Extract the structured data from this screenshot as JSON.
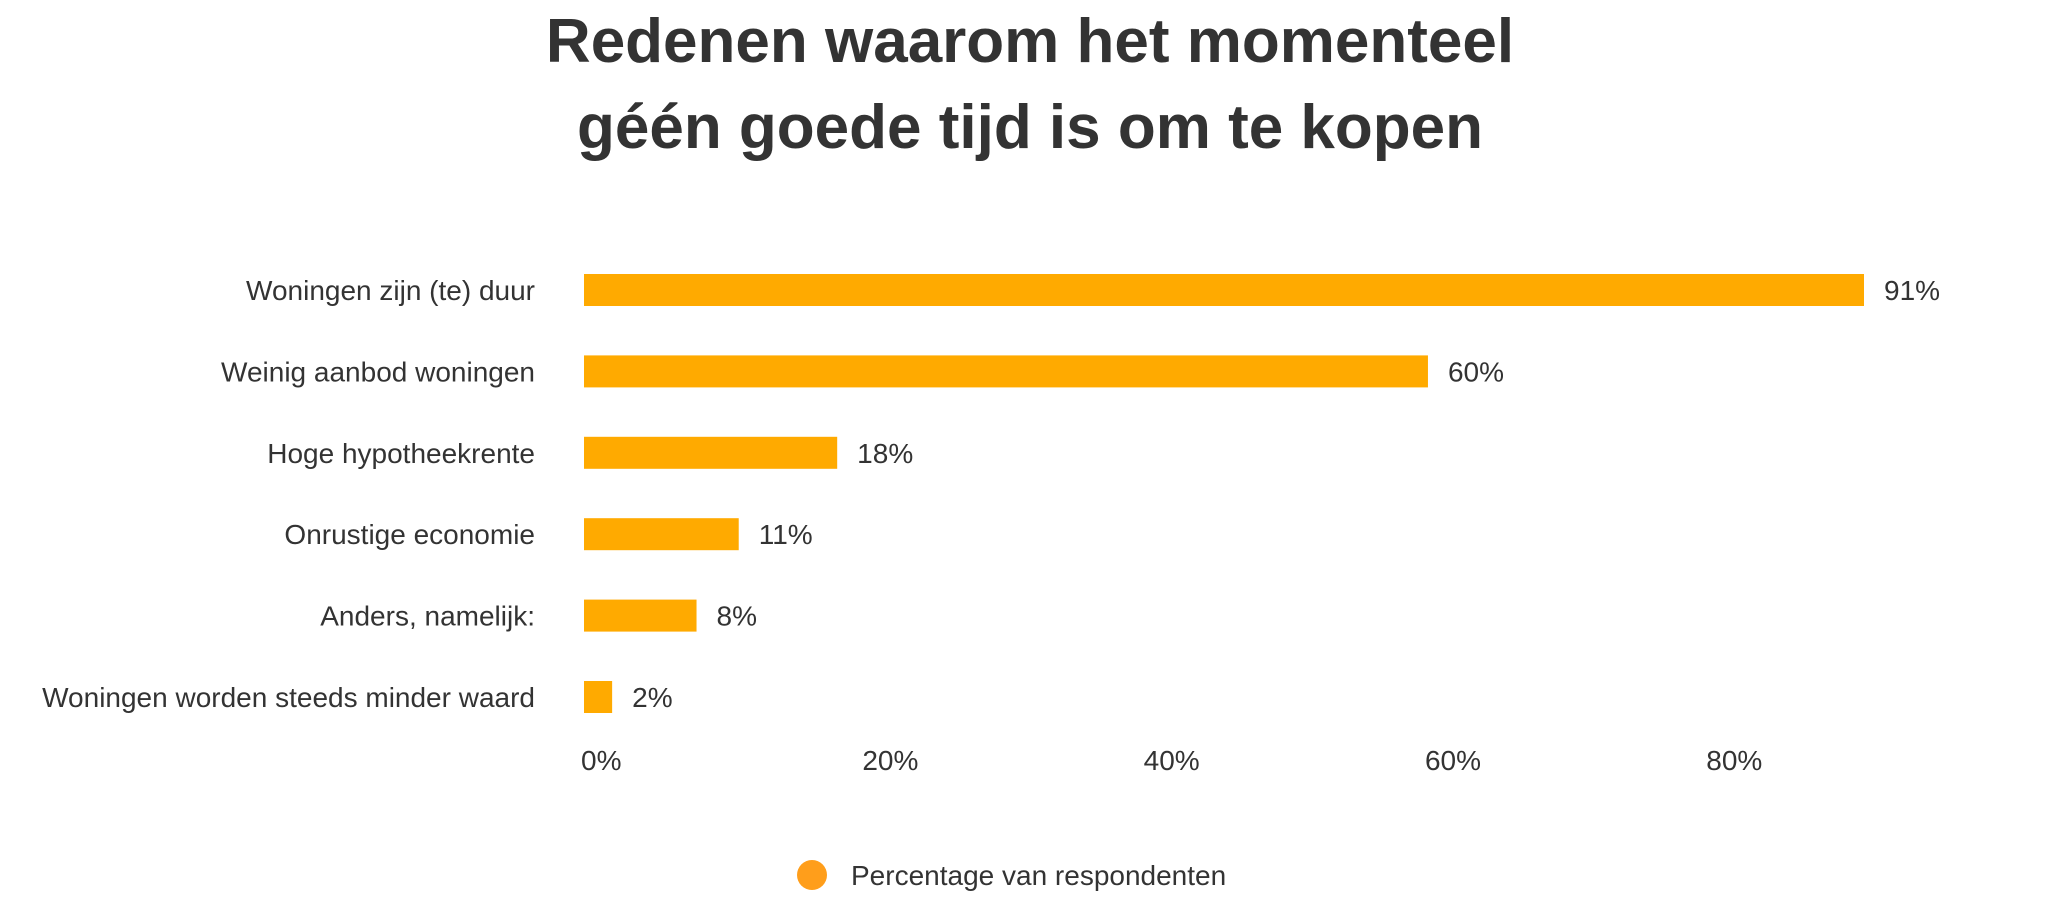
{
  "chart_data": {
    "type": "bar",
    "orientation": "horizontal",
    "title_lines": [
      "Redenen waarom het momenteel",
      "géén goede tijd is om te kopen"
    ],
    "categories": [
      "Woningen zijn (te) duur",
      "Weinig aanbod woningen",
      "Hoge hypotheekrente",
      "Onrustige economie",
      "Anders, namelijk:",
      "Woningen worden steeds minder waard"
    ],
    "series": [
      {
        "name": "Percentage van respondenten",
        "values": [
          91,
          60,
          18,
          11,
          8,
          2
        ],
        "value_labels": [
          "91%",
          "60%",
          "18%",
          "11%",
          "8%",
          "2%"
        ],
        "color": "#FFAA00"
      }
    ],
    "x_ticks": [
      0,
      20,
      40,
      60,
      80
    ],
    "x_tick_labels": [
      "0%",
      "20%",
      "40%",
      "60%",
      "80%"
    ],
    "xlim": [
      0,
      91
    ],
    "grid": false,
    "legend": {
      "position": "bottom",
      "marker_color": "#FF9E1B"
    }
  }
}
